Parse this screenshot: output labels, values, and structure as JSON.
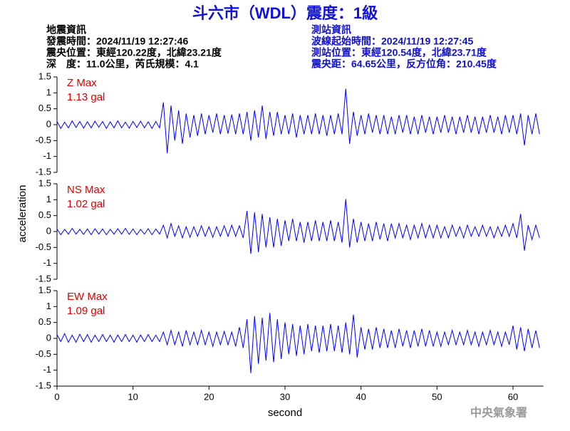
{
  "header": {
    "title": "斗六市（WDL）震度：1級",
    "left": [
      "地震資訊",
      "發震時間：2024/11/19 12:27:46",
      "震央位置：東經120.22度，北緯23.21度",
      "深　度：11.0公里，芮氏規模：4.1"
    ],
    "right": [
      "測站資訊",
      "波線起始時間：2024/11/19 12:27:45",
      "測站位置：東經120.54度，北緯23.71度",
      "震央距：64.65公里，反方位角：210.45度"
    ]
  },
  "footer": "中央氣象署",
  "chart_data": [
    {
      "type": "line",
      "label": "Z Max",
      "max_label": "1.13 gal",
      "xlim": [
        0,
        64
      ],
      "ylim": [
        -1.5,
        1.5
      ],
      "yticks": [
        1.5,
        1,
        0.5,
        0,
        -0.5,
        -1,
        -1.5
      ],
      "x": [
        0,
        0.5,
        1,
        1.5,
        2,
        2.5,
        3,
        3.5,
        4,
        4.5,
        5,
        5.5,
        6,
        6.5,
        7,
        7.5,
        8,
        8.5,
        9,
        9.5,
        10,
        10.5,
        11,
        11.5,
        12,
        12.5,
        13,
        13.5,
        14,
        14.5,
        15,
        15.5,
        16,
        16.5,
        17,
        17.5,
        18,
        18.5,
        19,
        19.5,
        20,
        20.5,
        21,
        21.5,
        22,
        22.5,
        23,
        23.5,
        24,
        24.5,
        25,
        25.5,
        26,
        26.5,
        27,
        27.5,
        28,
        28.5,
        29,
        29.5,
        30,
        30.5,
        31,
        31.5,
        32,
        32.5,
        33,
        33.5,
        34,
        34.5,
        35,
        35.5,
        36,
        36.5,
        37,
        37.5,
        38,
        38.5,
        39,
        39.5,
        40,
        40.5,
        41,
        41.5,
        42,
        42.5,
        43,
        43.5,
        44,
        44.5,
        45,
        45.5,
        46,
        46.5,
        47,
        47.5,
        48,
        48.5,
        49,
        49.5,
        50,
        50.5,
        51,
        51.5,
        52,
        52.5,
        53,
        53.5,
        54,
        54.5,
        55,
        55.5,
        56,
        56.5,
        57,
        57.5,
        58,
        58.5,
        59,
        59.5,
        60,
        60.5,
        61,
        61.5,
        62,
        62.5,
        63,
        63.5
      ],
      "series": [
        {
          "color": "#0000ff",
          "values": [
            0.1,
            -0.12,
            0.08,
            -0.1,
            0.12,
            -0.09,
            0.1,
            -0.11,
            0.09,
            -0.1,
            0.11,
            -0.08,
            0.1,
            -0.12,
            0.09,
            -0.1,
            0.12,
            -0.1,
            0.08,
            -0.11,
            0.1,
            -0.09,
            0.11,
            -0.1,
            0.09,
            -0.12,
            0.1,
            -0.1,
            0.7,
            -0.9,
            0.6,
            -0.5,
            0.45,
            -0.6,
            0.35,
            -0.4,
            0.3,
            -0.35,
            0.35,
            -0.3,
            0.3,
            -0.25,
            0.35,
            -0.3,
            0.3,
            -0.28,
            0.32,
            -0.3,
            0.35,
            -0.3,
            0.4,
            -0.5,
            0.45,
            -0.4,
            0.6,
            -0.45,
            0.4,
            -0.35,
            0.4,
            -0.3,
            0.3,
            -0.3,
            0.35,
            -0.4,
            0.3,
            -0.3,
            0.3,
            -0.3,
            0.35,
            -0.3,
            0.3,
            -0.35,
            0.3,
            -0.3,
            0.35,
            -0.3,
            1.13,
            -0.6,
            0.4,
            -0.35,
            0.3,
            -0.3,
            0.35,
            -0.25,
            0.3,
            -0.3,
            0.3,
            -0.3,
            0.25,
            -0.3,
            0.3,
            -0.25,
            0.3,
            -0.3,
            0.25,
            -0.3,
            0.3,
            -0.25,
            0.25,
            -0.3,
            0.25,
            -0.25,
            0.3,
            -0.25,
            0.25,
            -0.3,
            0.25,
            -0.25,
            0.3,
            -0.25,
            0.25,
            -0.3,
            0.25,
            -0.25,
            0.3,
            -0.25,
            0.25,
            -0.3,
            0.3,
            -0.25,
            0.3,
            -0.3,
            0.35,
            -0.65,
            0.3,
            -0.3,
            0.35,
            -0.3
          ]
        }
      ]
    },
    {
      "type": "line",
      "label": "NS Max",
      "max_label": "1.02 gal",
      "ylabel": "acceleration",
      "xlim": [
        0,
        64
      ],
      "ylim": [
        -1.5,
        1.5
      ],
      "yticks": [
        1.5,
        1,
        0.5,
        0,
        -0.5,
        -1,
        -1.5
      ],
      "x": [
        0,
        0.5,
        1,
        1.5,
        2,
        2.5,
        3,
        3.5,
        4,
        4.5,
        5,
        5.5,
        6,
        6.5,
        7,
        7.5,
        8,
        8.5,
        9,
        9.5,
        10,
        10.5,
        11,
        11.5,
        12,
        12.5,
        13,
        13.5,
        14,
        14.5,
        15,
        15.5,
        16,
        16.5,
        17,
        17.5,
        18,
        18.5,
        19,
        19.5,
        20,
        20.5,
        21,
        21.5,
        22,
        22.5,
        23,
        23.5,
        24,
        24.5,
        25,
        25.5,
        26,
        26.5,
        27,
        27.5,
        28,
        28.5,
        29,
        29.5,
        30,
        30.5,
        31,
        31.5,
        32,
        32.5,
        33,
        33.5,
        34,
        34.5,
        35,
        35.5,
        36,
        36.5,
        37,
        37.5,
        38,
        38.5,
        39,
        39.5,
        40,
        40.5,
        41,
        41.5,
        42,
        42.5,
        43,
        43.5,
        44,
        44.5,
        45,
        45.5,
        46,
        46.5,
        47,
        47.5,
        48,
        48.5,
        49,
        49.5,
        50,
        50.5,
        51,
        51.5,
        52,
        52.5,
        53,
        53.5,
        54,
        54.5,
        55,
        55.5,
        56,
        56.5,
        57,
        57.5,
        58,
        58.5,
        59,
        59.5,
        60,
        60.5,
        61,
        61.5,
        62,
        62.5,
        63,
        63.5
      ],
      "series": [
        {
          "color": "#0000ff",
          "values": [
            0.08,
            -0.1,
            0.07,
            -0.08,
            0.1,
            -0.08,
            0.07,
            -0.09,
            0.08,
            -0.1,
            0.09,
            -0.08,
            0.08,
            -0.1,
            0.07,
            -0.08,
            0.09,
            -0.08,
            0.1,
            -0.09,
            0.08,
            -0.1,
            0.07,
            -0.08,
            0.09,
            -0.1,
            0.08,
            -0.08,
            0.2,
            -0.2,
            0.25,
            -0.15,
            0.18,
            -0.2,
            0.15,
            -0.18,
            0.15,
            -0.15,
            0.18,
            -0.15,
            0.15,
            -0.18,
            0.15,
            -0.15,
            0.18,
            -0.15,
            0.2,
            -0.15,
            0.18,
            -0.2,
            0.65,
            -0.7,
            0.6,
            -0.65,
            0.55,
            -0.5,
            0.45,
            -0.5,
            0.4,
            -0.45,
            0.35,
            -0.3,
            0.4,
            -0.3,
            0.3,
            -0.35,
            0.3,
            -0.3,
            0.35,
            -0.3,
            0.3,
            -0.3,
            0.35,
            -0.3,
            0.3,
            -0.35,
            1.02,
            -0.5,
            0.4,
            -0.35,
            0.3,
            -0.3,
            0.25,
            -0.3,
            0.3,
            -0.25,
            0.25,
            -0.3,
            0.25,
            -0.2,
            0.25,
            -0.2,
            0.2,
            -0.25,
            0.2,
            -0.2,
            0.25,
            -0.2,
            0.2,
            -0.2,
            0.2,
            -0.2,
            0.15,
            -0.2,
            0.2,
            -0.15,
            0.15,
            -0.2,
            0.2,
            -0.15,
            0.15,
            -0.15,
            0.2,
            -0.15,
            0.15,
            -0.2,
            0.15,
            -0.15,
            0.2,
            -0.15,
            0.25,
            -0.2,
            0.55,
            -0.6,
            0.2,
            -0.25,
            0.2,
            -0.2
          ]
        }
      ]
    },
    {
      "type": "line",
      "label": "EW Max",
      "max_label": "1.09 gal",
      "xlabel": "second",
      "xlim": [
        0,
        64
      ],
      "xticks": [
        0,
        10,
        20,
        30,
        40,
        50,
        60
      ],
      "ylim": [
        -1.5,
        1.5
      ],
      "yticks": [
        1.5,
        1,
        0.5,
        0,
        -0.5,
        -1,
        -1.5
      ],
      "x": [
        0,
        0.5,
        1,
        1.5,
        2,
        2.5,
        3,
        3.5,
        4,
        4.5,
        5,
        5.5,
        6,
        6.5,
        7,
        7.5,
        8,
        8.5,
        9,
        9.5,
        10,
        10.5,
        11,
        11.5,
        12,
        12.5,
        13,
        13.5,
        14,
        14.5,
        15,
        15.5,
        16,
        16.5,
        17,
        17.5,
        18,
        18.5,
        19,
        19.5,
        20,
        20.5,
        21,
        21.5,
        22,
        22.5,
        23,
        23.5,
        24,
        24.5,
        25,
        25.5,
        26,
        26.5,
        27,
        27.5,
        28,
        28.5,
        29,
        29.5,
        30,
        30.5,
        31,
        31.5,
        32,
        32.5,
        33,
        33.5,
        34,
        34.5,
        35,
        35.5,
        36,
        36.5,
        37,
        37.5,
        38,
        38.5,
        39,
        39.5,
        40,
        40.5,
        41,
        41.5,
        42,
        42.5,
        43,
        43.5,
        44,
        44.5,
        45,
        45.5,
        46,
        46.5,
        47,
        47.5,
        48,
        48.5,
        49,
        49.5,
        50,
        50.5,
        51,
        51.5,
        52,
        52.5,
        53,
        53.5,
        54,
        54.5,
        55,
        55.5,
        56,
        56.5,
        57,
        57.5,
        58,
        58.5,
        59,
        59.5,
        60,
        60.5,
        61,
        61.5,
        62,
        62.5,
        63,
        63.5
      ],
      "series": [
        {
          "color": "#0000ff",
          "values": [
            0.12,
            -0.1,
            0.15,
            -0.12,
            0.1,
            -0.12,
            0.13,
            -0.1,
            0.12,
            -0.12,
            0.1,
            -0.1,
            0.12,
            -0.1,
            0.1,
            -0.12,
            0.11,
            -0.1,
            0.12,
            -0.1,
            0.1,
            -0.12,
            0.11,
            -0.1,
            0.12,
            -0.1,
            0.1,
            -0.1,
            0.2,
            -0.2,
            0.25,
            -0.2,
            0.2,
            -0.25,
            0.25,
            -0.2,
            0.2,
            -0.2,
            0.25,
            -0.2,
            0.2,
            -0.25,
            0.2,
            -0.2,
            0.22,
            -0.2,
            0.2,
            -0.25,
            0.35,
            -0.3,
            0.6,
            -1.09,
            0.7,
            -0.8,
            0.65,
            -0.7,
            0.8,
            -0.75,
            0.6,
            -0.65,
            0.5,
            -0.5,
            0.45,
            -0.55,
            0.4,
            -0.5,
            0.45,
            -0.4,
            0.4,
            -0.45,
            0.4,
            -0.4,
            0.45,
            -0.4,
            0.4,
            -0.45,
            0.5,
            -0.5,
            0.75,
            -0.6,
            0.35,
            -0.35,
            0.3,
            -0.35,
            0.35,
            -0.3,
            0.3,
            -0.3,
            0.25,
            -0.3,
            0.3,
            -0.25,
            0.25,
            -0.3,
            0.25,
            -0.25,
            0.3,
            -0.25,
            0.25,
            -0.25,
            0.2,
            -0.25,
            0.2,
            -0.2,
            0.25,
            -0.2,
            0.2,
            -0.2,
            0.25,
            -0.2,
            0.2,
            -0.25,
            0.2,
            -0.2,
            0.25,
            -0.2,
            0.2,
            -0.25,
            0.2,
            -0.2,
            0.4,
            -0.35,
            0.35,
            -0.4,
            0.3,
            -0.3,
            0.25,
            -0.3
          ]
        }
      ]
    }
  ]
}
